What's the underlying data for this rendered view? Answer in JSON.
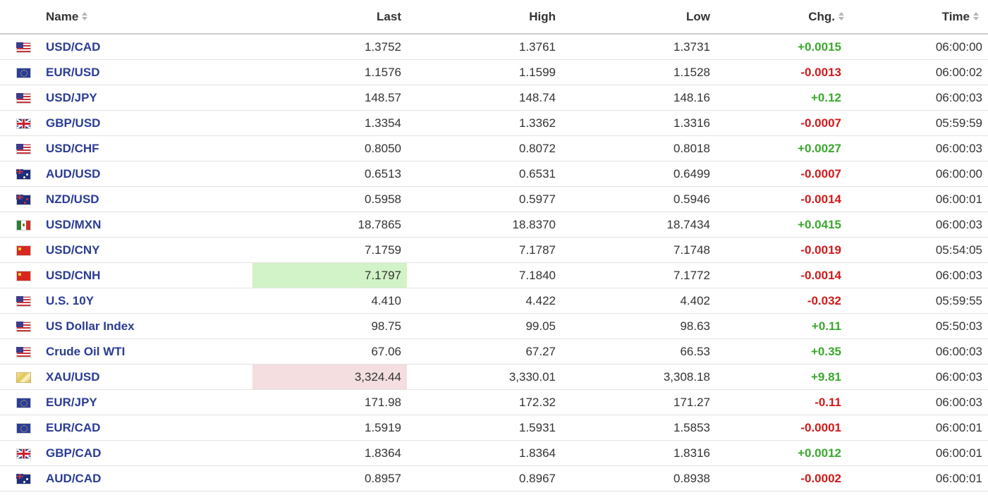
{
  "columns": {
    "name": "Name",
    "last": "Last",
    "high": "High",
    "low": "Low",
    "chg": "Chg.",
    "time": "Time"
  },
  "colors": {
    "link": "#2a3c94",
    "up": "#3ba82d",
    "down": "#d11a1a",
    "highlight_up": "#d2f2c7",
    "highlight_down": "#f4dedf"
  },
  "rows": [
    {
      "flag": "us-flag-icon",
      "name": "USD/CAD",
      "last": "1.3752",
      "high": "1.3761",
      "low": "1.3731",
      "chg": "+0.0015",
      "dir": "up",
      "time": "06:00:00",
      "highlight": ""
    },
    {
      "flag": "eu-flag-icon",
      "name": "EUR/USD",
      "last": "1.1576",
      "high": "1.1599",
      "low": "1.1528",
      "chg": "-0.0013",
      "dir": "down",
      "time": "06:00:02",
      "highlight": ""
    },
    {
      "flag": "us-flag-icon",
      "name": "USD/JPY",
      "last": "148.57",
      "high": "148.74",
      "low": "148.16",
      "chg": "+0.12",
      "dir": "up",
      "time": "06:00:03",
      "highlight": ""
    },
    {
      "flag": "gb-flag-icon",
      "name": "GBP/USD",
      "last": "1.3354",
      "high": "1.3362",
      "low": "1.3316",
      "chg": "-0.0007",
      "dir": "down",
      "time": "05:59:59",
      "highlight": ""
    },
    {
      "flag": "us-flag-icon",
      "name": "USD/CHF",
      "last": "0.8050",
      "high": "0.8072",
      "low": "0.8018",
      "chg": "+0.0027",
      "dir": "up",
      "time": "06:00:03",
      "highlight": ""
    },
    {
      "flag": "au-flag-icon",
      "name": "AUD/USD",
      "last": "0.6513",
      "high": "0.6531",
      "low": "0.6499",
      "chg": "-0.0007",
      "dir": "down",
      "time": "06:00:00",
      "highlight": ""
    },
    {
      "flag": "nz-flag-icon",
      "name": "NZD/USD",
      "last": "0.5958",
      "high": "0.5977",
      "low": "0.5946",
      "chg": "-0.0014",
      "dir": "down",
      "time": "06:00:01",
      "highlight": ""
    },
    {
      "flag": "mx-flag-icon",
      "name": "USD/MXN",
      "last": "18.7865",
      "high": "18.8370",
      "low": "18.7434",
      "chg": "+0.0415",
      "dir": "up",
      "time": "06:00:03",
      "highlight": ""
    },
    {
      "flag": "cn-flag-icon",
      "name": "USD/CNY",
      "last": "7.1759",
      "high": "7.1787",
      "low": "7.1748",
      "chg": "-0.0019",
      "dir": "down",
      "time": "05:54:05",
      "highlight": ""
    },
    {
      "flag": "cn-flag-icon",
      "name": "USD/CNH",
      "last": "7.1797",
      "high": "7.1840",
      "low": "7.1772",
      "chg": "-0.0014",
      "dir": "down",
      "time": "06:00:03",
      "highlight": "up"
    },
    {
      "flag": "us-flag-icon",
      "name": "U.S. 10Y",
      "last": "4.410",
      "high": "4.422",
      "low": "4.402",
      "chg": "-0.032",
      "dir": "down",
      "time": "05:59:55",
      "highlight": ""
    },
    {
      "flag": "us-flag-icon",
      "name": "US Dollar Index",
      "last": "98.75",
      "high": "99.05",
      "low": "98.63",
      "chg": "+0.11",
      "dir": "up",
      "time": "05:50:03",
      "highlight": ""
    },
    {
      "flag": "us-flag-icon",
      "name": "Crude Oil WTI",
      "last": "67.06",
      "high": "67.27",
      "low": "66.53",
      "chg": "+0.35",
      "dir": "up",
      "time": "06:00:03",
      "highlight": ""
    },
    {
      "flag": "gold-icon",
      "name": "XAU/USD",
      "last": "3,324.44",
      "high": "3,330.01",
      "low": "3,308.18",
      "chg": "+9.81",
      "dir": "up",
      "time": "06:00:03",
      "highlight": "down"
    },
    {
      "flag": "eu-flag-icon",
      "name": "EUR/JPY",
      "last": "171.98",
      "high": "172.32",
      "low": "171.27",
      "chg": "-0.11",
      "dir": "down",
      "time": "06:00:03",
      "highlight": ""
    },
    {
      "flag": "eu-flag-icon",
      "name": "EUR/CAD",
      "last": "1.5919",
      "high": "1.5931",
      "low": "1.5853",
      "chg": "-0.0001",
      "dir": "down",
      "time": "06:00:01",
      "highlight": ""
    },
    {
      "flag": "gb-flag-icon",
      "name": "GBP/CAD",
      "last": "1.8364",
      "high": "1.8364",
      "low": "1.8316",
      "chg": "+0.0012",
      "dir": "up",
      "time": "06:00:01",
      "highlight": ""
    },
    {
      "flag": "au-flag-icon",
      "name": "AUD/CAD",
      "last": "0.8957",
      "high": "0.8967",
      "low": "0.8938",
      "chg": "-0.0002",
      "dir": "down",
      "time": "06:00:01",
      "highlight": ""
    }
  ]
}
